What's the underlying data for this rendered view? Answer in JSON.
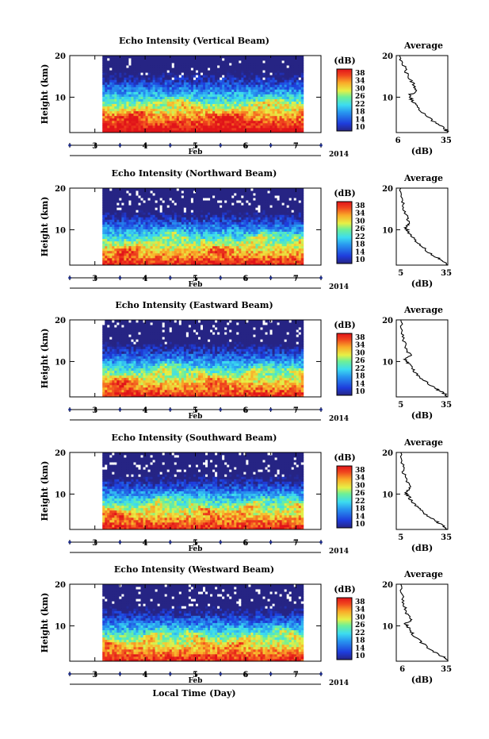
{
  "chart_data": [
    {
      "type": "heatmap",
      "title": "Echo Intensity (Vertical Beam)",
      "ylabel": "Height (km)",
      "yticks": [
        "20",
        "10"
      ],
      "xticks": [
        "3",
        "4",
        "5",
        "6",
        "7"
      ],
      "xlabel_month": "Feb",
      "year": "2014",
      "colorbar_label": "(dB)",
      "colorbar_ticks": [
        "38",
        "34",
        "30",
        "26",
        "22",
        "18",
        "14",
        "10"
      ],
      "profile_title": "Average",
      "profile_xlabel": "(dB)",
      "profile_xticks": [
        "6",
        "35"
      ],
      "profile_yticks": [
        "20",
        "10"
      ],
      "xlim": [
        2.5,
        7.5
      ],
      "ylim": [
        1.5,
        20
      ],
      "data_start_day": 3.15,
      "data_end_day": 7.15,
      "profile_xlim": [
        5,
        36
      ],
      "profile": [
        [
          1.5,
          36
        ],
        [
          2.5,
          34
        ],
        [
          4,
          28
        ],
        [
          6,
          22
        ],
        [
          8,
          17
        ],
        [
          9.5,
          14
        ],
        [
          10.5,
          13
        ],
        [
          11.5,
          17
        ],
        [
          12.5,
          16
        ],
        [
          14,
          14
        ],
        [
          16,
          11
        ],
        [
          18,
          9
        ],
        [
          20,
          7
        ]
      ]
    },
    {
      "type": "heatmap",
      "title": "Echo Intensity (Northward Beam)",
      "ylabel": "Height (km)",
      "yticks": [
        "20",
        "10"
      ],
      "xticks": [
        "3",
        "4",
        "5",
        "6",
        "7"
      ],
      "xlabel_month": "Feb",
      "year": "2014",
      "colorbar_label": "(dB)",
      "colorbar_ticks": [
        "38",
        "34",
        "30",
        "26",
        "22",
        "18",
        "14",
        "10"
      ],
      "profile_title": "Average",
      "profile_xlabel": "(dB)",
      "profile_xticks": [
        "5",
        "35"
      ],
      "profile_yticks": [
        "20",
        "10"
      ],
      "xlim": [
        2.5,
        7.5
      ],
      "ylim": [
        1.5,
        20
      ],
      "data_start_day": 3.15,
      "data_end_day": 7.15,
      "profile_xlim": [
        2,
        36
      ],
      "profile": [
        [
          1.5,
          36
        ],
        [
          2.5,
          33
        ],
        [
          3.5,
          28
        ],
        [
          5,
          22
        ],
        [
          6.5,
          17
        ],
        [
          8,
          13
        ],
        [
          9.5,
          10
        ],
        [
          10.5,
          8
        ],
        [
          11.5,
          11
        ],
        [
          13,
          9
        ],
        [
          15,
          7
        ],
        [
          17,
          6
        ],
        [
          20,
          5
        ]
      ]
    },
    {
      "type": "heatmap",
      "title": "Echo Intensity (Eastward Beam)",
      "ylabel": "Height (km)",
      "yticks": [
        "20",
        "10"
      ],
      "xticks": [
        "3",
        "4",
        "5",
        "6",
        "7"
      ],
      "xlabel_month": "Feb",
      "year": "2014",
      "colorbar_label": "(dB)",
      "colorbar_ticks": [
        "38",
        "34",
        "30",
        "26",
        "22",
        "18",
        "14",
        "10"
      ],
      "profile_title": "Average",
      "profile_xlabel": "(dB)",
      "profile_xticks": [
        "5",
        "35"
      ],
      "profile_yticks": [
        "20",
        "10"
      ],
      "xlim": [
        2.5,
        7.5
      ],
      "ylim": [
        1.5,
        20
      ],
      "data_start_day": 3.15,
      "data_end_day": 7.15,
      "profile_xlim": [
        2,
        36
      ],
      "profile": [
        [
          1.5,
          36
        ],
        [
          2.5,
          33
        ],
        [
          3.5,
          28
        ],
        [
          5,
          22
        ],
        [
          6.5,
          17
        ],
        [
          8,
          13
        ],
        [
          9.5,
          10
        ],
        [
          10.5,
          8
        ],
        [
          11.5,
          11
        ],
        [
          13,
          9
        ],
        [
          15,
          7
        ],
        [
          17,
          6
        ],
        [
          20,
          5
        ]
      ]
    },
    {
      "type": "heatmap",
      "title": "Echo Intensity (Southward Beam)",
      "ylabel": "Height (km)",
      "yticks": [
        "20",
        "10"
      ],
      "xticks": [
        "3",
        "4",
        "5",
        "6",
        "7"
      ],
      "xlabel_month": "Feb",
      "year": "2014",
      "colorbar_label": "(dB)",
      "colorbar_ticks": [
        "38",
        "34",
        "30",
        "26",
        "22",
        "18",
        "14",
        "10"
      ],
      "profile_title": "Average",
      "profile_xlabel": "(dB)",
      "profile_xticks": [
        "5",
        "35"
      ],
      "profile_yticks": [
        "20",
        "10"
      ],
      "xlim": [
        2.5,
        7.5
      ],
      "ylim": [
        1.5,
        20
      ],
      "data_start_day": 3.15,
      "data_end_day": 7.15,
      "profile_xlim": [
        2,
        36
      ],
      "profile": [
        [
          1.5,
          36
        ],
        [
          2.5,
          33
        ],
        [
          3.5,
          28
        ],
        [
          5,
          22
        ],
        [
          6.5,
          17
        ],
        [
          8,
          13
        ],
        [
          9.5,
          10
        ],
        [
          10.5,
          8
        ],
        [
          11.5,
          11
        ],
        [
          13,
          9
        ],
        [
          15,
          7
        ],
        [
          17,
          6
        ],
        [
          20,
          5
        ]
      ]
    },
    {
      "type": "heatmap",
      "title": "Echo Intensity (Westward Beam)",
      "ylabel": "Height (km)",
      "yticks": [
        "20",
        "10"
      ],
      "xticks": [
        "3",
        "4",
        "5",
        "6",
        "7"
      ],
      "xlabel_month": "Feb",
      "year": "2014",
      "colorbar_label": "(dB)",
      "colorbar_ticks": [
        "38",
        "34",
        "30",
        "26",
        "22",
        "18",
        "14",
        "10"
      ],
      "profile_title": "Average",
      "profile_xlabel": "(dB)",
      "profile_xticks": [
        "6",
        "35"
      ],
      "profile_yticks": [
        "20",
        "10"
      ],
      "xlim": [
        2.5,
        7.5
      ],
      "ylim": [
        1.5,
        20
      ],
      "data_start_day": 3.15,
      "data_end_day": 7.15,
      "profile_xlim": [
        2,
        36
      ],
      "profile": [
        [
          1.5,
          36
        ],
        [
          2.5,
          33
        ],
        [
          3.5,
          28
        ],
        [
          5,
          22
        ],
        [
          6.5,
          17
        ],
        [
          8,
          13
        ],
        [
          9.5,
          10
        ],
        [
          10.5,
          8
        ],
        [
          11.5,
          12
        ],
        [
          13,
          9
        ],
        [
          15,
          7
        ],
        [
          17,
          6
        ],
        [
          20,
          5
        ]
      ]
    }
  ],
  "footer": {
    "xlabel": "Local Time (Day)"
  }
}
